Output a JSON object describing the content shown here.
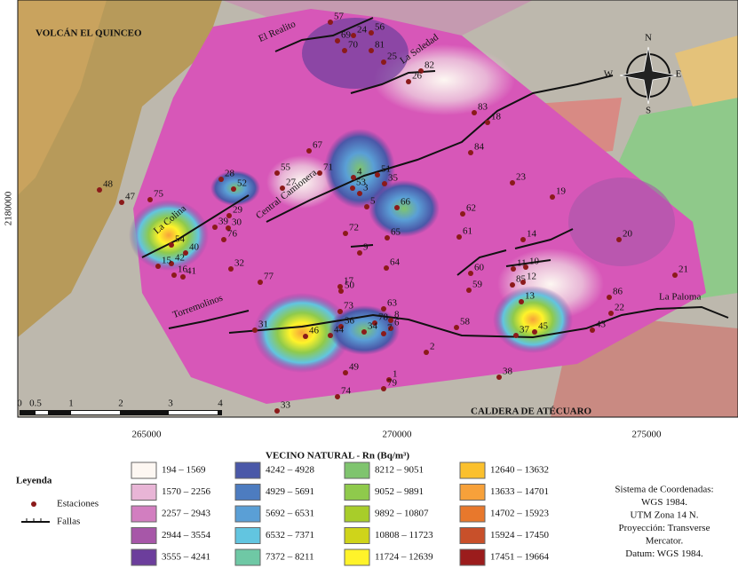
{
  "map": {
    "places": [
      "VOLCÁN EL QUINCEO",
      "CALDERA DE ATÉCUARO"
    ],
    "faults": [
      "El Realito",
      "La Soledad",
      "La Colina",
      "Central Camionera",
      "Torremolinos",
      "La Paloma"
    ],
    "x_coords": [
      "265000",
      "270000",
      "275000"
    ],
    "y_coords": [
      "2180000"
    ],
    "scale_labels": [
      "0",
      "0.5",
      "1",
      "2",
      "3",
      "4"
    ],
    "compass": [
      "N",
      "E",
      "S",
      "W"
    ],
    "stations": [
      "57",
      "24",
      "56",
      "69",
      "70",
      "81",
      "25",
      "82",
      "26",
      "83",
      "18",
      "84",
      "67",
      "55",
      "71",
      "28",
      "52",
      "27",
      "4",
      "51",
      "53",
      "3",
      "35",
      "5",
      "66",
      "62",
      "23",
      "19",
      "48",
      "47",
      "75",
      "29",
      "39",
      "30",
      "76",
      "72",
      "65",
      "61",
      "14",
      "20",
      "9",
      "54",
      "40",
      "42",
      "15",
      "16",
      "41",
      "32",
      "77",
      "64",
      "60",
      "11",
      "10",
      "59",
      "85",
      "12",
      "21",
      "17",
      "50",
      "13",
      "86",
      "22",
      "63",
      "73",
      "58",
      "8",
      "78",
      "6",
      "36",
      "34",
      "7",
      "46",
      "44",
      "37",
      "45",
      "43",
      "31",
      "2",
      "49",
      "1",
      "79",
      "74",
      "38",
      "33"
    ]
  },
  "legend": {
    "title": "Leyenda",
    "items": [
      "Estaciones",
      "Fallas"
    ],
    "scale_title": "VECINO NATURAL - Rn (Bq/m³)",
    "classes": [
      {
        "label": "194 – 1569",
        "color": "#fdf7f2"
      },
      {
        "label": "1570 – 2256",
        "color": "#e8b5d6"
      },
      {
        "label": "2257 – 2943",
        "color": "#d27ec0"
      },
      {
        "label": "2944 – 3554",
        "color": "#a757a8"
      },
      {
        "label": "3555 – 4241",
        "color": "#6c3e9c"
      },
      {
        "label": "4242 – 4928",
        "color": "#4a58a8"
      },
      {
        "label": "4929 – 5691",
        "color": "#4d7cc0"
      },
      {
        "label": "5692 – 6531",
        "color": "#5a9fd6"
      },
      {
        "label": "6532 – 7371",
        "color": "#62c5e0"
      },
      {
        "label": "7372 – 8211",
        "color": "#6fc8a5"
      },
      {
        "label": "8212 – 9051",
        "color": "#7fc46e"
      },
      {
        "label": "9052 – 9891",
        "color": "#8fca4c"
      },
      {
        "label": "9892 – 10807",
        "color": "#a8cd2a"
      },
      {
        "label": "10808 – 11723",
        "color": "#cfd41a"
      },
      {
        "label": "11724 – 12639",
        "color": "#fff32a"
      },
      {
        "label": "12640 – 13632",
        "color": "#fbc02d"
      },
      {
        "label": "13633 – 14701",
        "color": "#f7a13a"
      },
      {
        "label": "14702 – 15923",
        "color": "#e8782c"
      },
      {
        "label": "15924 – 17450",
        "color": "#c8502a"
      },
      {
        "label": "17451 – 19664",
        "color": "#9b1c1c"
      }
    ]
  },
  "crs": [
    "Sistema de Coordenadas:",
    "WGS 1984.",
    "UTM Zona 14 N.",
    "Proyección: Transverse",
    "Mercator.",
    "Datum: WGS 1984."
  ]
}
